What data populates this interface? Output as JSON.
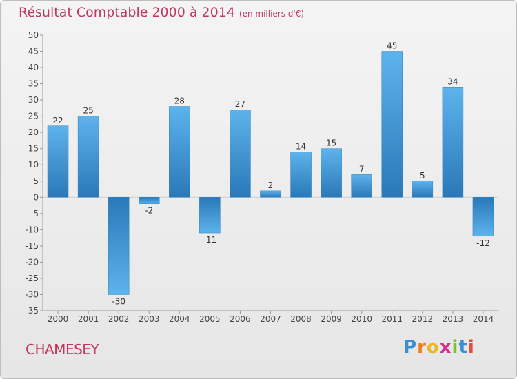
{
  "title": "Résultat Comptable 2000 à 2014",
  "subtitle": "(en milliers d'€)",
  "commune": "CHAMESEY",
  "logo": {
    "letters": [
      "P",
      "r",
      "o",
      "x",
      "i",
      "t",
      "i"
    ],
    "colors": [
      "#3a8fd0",
      "#f07d1a",
      "#e8b81e",
      "#d62f8a",
      "#7bbf2a",
      "#3a8fd0",
      "#e84a3a"
    ]
  },
  "chart_data": {
    "type": "bar",
    "categories": [
      "2000",
      "2001",
      "2002",
      "2003",
      "2004",
      "2005",
      "2006",
      "2007",
      "2008",
      "2009",
      "2010",
      "2011",
      "2012",
      "2013",
      "2014"
    ],
    "values": [
      22,
      25,
      -30,
      -2,
      28,
      -11,
      27,
      2,
      14,
      15,
      7,
      45,
      5,
      34,
      -12
    ],
    "ylim": [
      -35,
      50
    ],
    "yticks": [
      50,
      45,
      40,
      35,
      30,
      25,
      20,
      15,
      10,
      5,
      0,
      -5,
      -10,
      -15,
      -20,
      -25,
      -30,
      -35
    ],
    "grid": false,
    "bar_color": "#3c93d6"
  }
}
